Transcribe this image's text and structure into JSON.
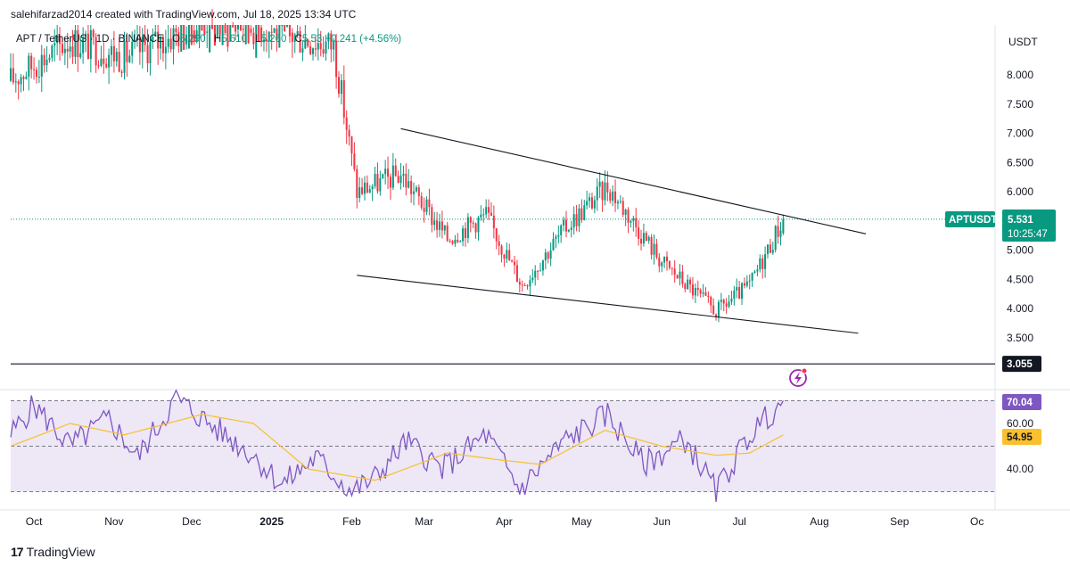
{
  "header": {
    "credit": "salehifarzad2014 created with TradingView.com, Jul 18, 2025 13:34 UTC"
  },
  "legend": {
    "symbol": "APT / TetherUS · 1D · BINANCE",
    "open_label": "O",
    "open": "5.290",
    "high_label": "H",
    "high": "5.610",
    "low_label": "L",
    "low": "5.260",
    "close_label": "C",
    "close": "5.53",
    "change": "+0.241 (+4.56%)"
  },
  "brand": {
    "label": "TradingView"
  },
  "colors": {
    "up": "#089981",
    "down": "#f23645",
    "rsi": "#7e57c2",
    "rsi_ma": "#f7c12c",
    "rsi_band": "#ede7f6",
    "tag_green": "#089981",
    "tag_purple": "#7e57c2",
    "tag_yellow": "#fbc02d"
  },
  "icons": {
    "alert": "lightning-alert-icon"
  },
  "chart_data": [
    {
      "type": "candlestick",
      "title": "APT / TetherUS · 1D · BINANCE",
      "currency_label": "USDT",
      "y_ticks": [
        "8.000",
        "7.500",
        "7.000",
        "6.500",
        "6.000",
        "5.500",
        "5.000",
        "4.500",
        "4.000",
        "3.500"
      ],
      "ylim": [
        3.2,
        8.6
      ],
      "x_ticks": [
        "Oct",
        "Nov",
        "Dec",
        "2025",
        "Feb",
        "Mar",
        "Apr",
        "May",
        "Jun",
        "Jul",
        "Aug",
        "Sep",
        "Oc"
      ],
      "last_price": {
        "symbol": "APTUSDT",
        "value": "5.531",
        "countdown": "10:25:47"
      },
      "horizontal_level": {
        "value": "3.055"
      },
      "close_series": {
        "segments": [
          {
            "from": "2024-09-22",
            "to": "2024-10-15",
            "start": 7.9,
            "end": 8.6
          },
          {
            "from": "2024-10-15",
            "to": "2024-11-05",
            "start": 8.6,
            "end": 8.3
          },
          {
            "from": "2024-11-05",
            "to": "2024-12-10",
            "start": 8.3,
            "end": 9.0
          },
          {
            "from": "2024-12-10",
            "to": "2025-01-25",
            "start": 9.0,
            "end": 8.5
          },
          {
            "from": "2025-01-25",
            "to": "2025-02-03",
            "start": 8.5,
            "end": 6.0
          },
          {
            "from": "2025-02-03",
            "to": "2025-02-20",
            "start": 6.0,
            "end": 6.3
          },
          {
            "from": "2025-02-20",
            "to": "2025-03-10",
            "start": 6.3,
            "end": 5.2
          },
          {
            "from": "2025-03-10",
            "to": "2025-03-25",
            "start": 5.2,
            "end": 5.6
          },
          {
            "from": "2025-03-25",
            "to": "2025-04-08",
            "start": 5.6,
            "end": 4.4
          },
          {
            "from": "2025-04-08",
            "to": "2025-04-25",
            "start": 4.4,
            "end": 5.4
          },
          {
            "from": "2025-04-25",
            "to": "2025-05-11",
            "start": 5.4,
            "end": 6.1
          },
          {
            "from": "2025-05-11",
            "to": "2025-06-01",
            "start": 6.1,
            "end": 4.8
          },
          {
            "from": "2025-06-01",
            "to": "2025-06-22",
            "start": 4.8,
            "end": 3.95
          },
          {
            "from": "2025-06-22",
            "to": "2025-07-05",
            "start": 3.95,
            "end": 4.4
          },
          {
            "from": "2025-07-05",
            "to": "2025-07-18",
            "start": 4.4,
            "end": 5.531
          }
        ]
      },
      "trendlines": [
        {
          "name": "upper-trendline",
          "points": [
            [
              "2025-02-20",
              7.08
            ],
            [
              "2025-08-19",
              5.28
            ]
          ]
        },
        {
          "name": "lower-trendline",
          "points": [
            [
              "2025-02-03",
              4.57
            ],
            [
              "2025-08-16",
              3.58
            ]
          ]
        }
      ]
    },
    {
      "type": "line",
      "title": "RSI",
      "y_ticks": [
        "60.00",
        "40.00"
      ],
      "ylim": [
        25,
        80
      ],
      "bands": {
        "upper": 70,
        "middle": 50,
        "lower": 30
      },
      "series": [
        {
          "name": "RSI",
          "last": "70.04",
          "anchors": [
            [
              "2024-09-22",
              55
            ],
            [
              "2024-10-01",
              68
            ],
            [
              "2024-10-15",
              50
            ],
            [
              "2024-10-30",
              62
            ],
            [
              "2024-11-10",
              45
            ],
            [
              "2024-11-25",
              71
            ],
            [
              "2024-12-10",
              58
            ],
            [
              "2024-12-25",
              46
            ],
            [
              "2025-01-05",
              33
            ],
            [
              "2025-01-18",
              45
            ],
            [
              "2025-02-01",
              30
            ],
            [
              "2025-02-10",
              36
            ],
            [
              "2025-02-22",
              52
            ],
            [
              "2025-03-08",
              40
            ],
            [
              "2025-03-25",
              55
            ],
            [
              "2025-04-07",
              31
            ],
            [
              "2025-04-24",
              52
            ],
            [
              "2025-05-11",
              64
            ],
            [
              "2025-05-25",
              42
            ],
            [
              "2025-06-10",
              53
            ],
            [
              "2025-06-22",
              30
            ],
            [
              "2025-07-05",
              55
            ],
            [
              "2025-07-18",
              70.04
            ]
          ]
        },
        {
          "name": "RSI-based MA",
          "last": "54.95",
          "anchors": [
            [
              "2024-09-22",
              50
            ],
            [
              "2024-10-15",
              60
            ],
            [
              "2024-11-05",
              55
            ],
            [
              "2024-12-05",
              64
            ],
            [
              "2024-12-25",
              60
            ],
            [
              "2025-01-15",
              40
            ],
            [
              "2025-02-10",
              35
            ],
            [
              "2025-03-10",
              47
            ],
            [
              "2025-03-30",
              44
            ],
            [
              "2025-04-15",
              42
            ],
            [
              "2025-05-10",
              57
            ],
            [
              "2025-06-01",
              50
            ],
            [
              "2025-06-22",
              46
            ],
            [
              "2025-07-05",
              47
            ],
            [
              "2025-07-18",
              54.95
            ]
          ]
        }
      ]
    }
  ]
}
